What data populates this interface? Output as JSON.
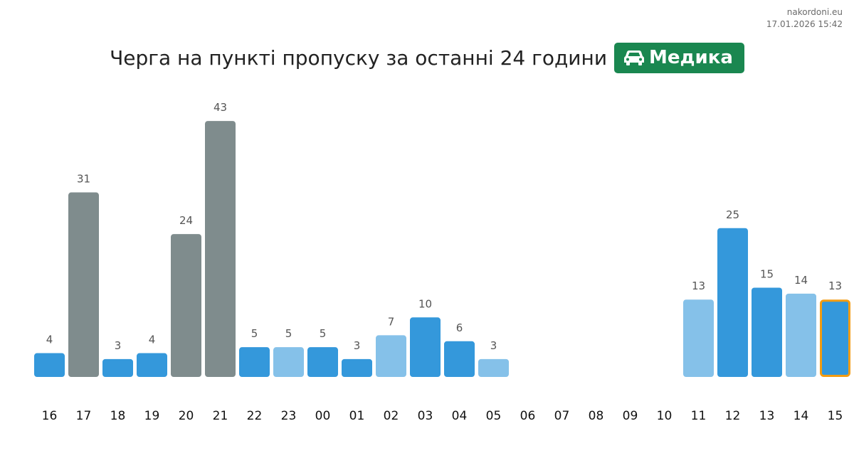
{
  "source": {
    "site": "nakordoni.eu",
    "timestamp": "17.01.2026 15:42"
  },
  "header": {
    "title": "Черга на пункті пропуску за останні 24 години",
    "checkpoint_icon": "car-icon",
    "checkpoint_name": "Медика",
    "checkpoint_color": "#1a8750"
  },
  "chart_data": {
    "type": "bar",
    "title": "Черга на пункті пропуску за останні 24 години",
    "xlabel": "",
    "ylabel": "",
    "grid": false,
    "categories": [
      "16",
      "17",
      "18",
      "19",
      "20",
      "21",
      "22",
      "23",
      "00",
      "01",
      "02",
      "03",
      "04",
      "05",
      "06",
      "07",
      "08",
      "09",
      "10",
      "11",
      "12",
      "13",
      "14",
      "15"
    ],
    "values": [
      4,
      31,
      3,
      4,
      24,
      43,
      5,
      5,
      5,
      3,
      7,
      10,
      6,
      3,
      null,
      null,
      null,
      null,
      null,
      13,
      25,
      15,
      14,
      13
    ],
    "bar_colors": [
      "#3498db",
      "#7f8c8d",
      "#3498db",
      "#3498db",
      "#7f8c8d",
      "#7f8c8d",
      "#3498db",
      "#85c1e9",
      "#3498db",
      "#3498db",
      "#85c1e9",
      "#3498db",
      "#3498db",
      "#85c1e9",
      null,
      null,
      null,
      null,
      null,
      "#85c1e9",
      "#3498db",
      "#3498db",
      "#85c1e9",
      "#3498db"
    ],
    "highlighted_category": "15",
    "highlight_color": "#f39c12"
  }
}
